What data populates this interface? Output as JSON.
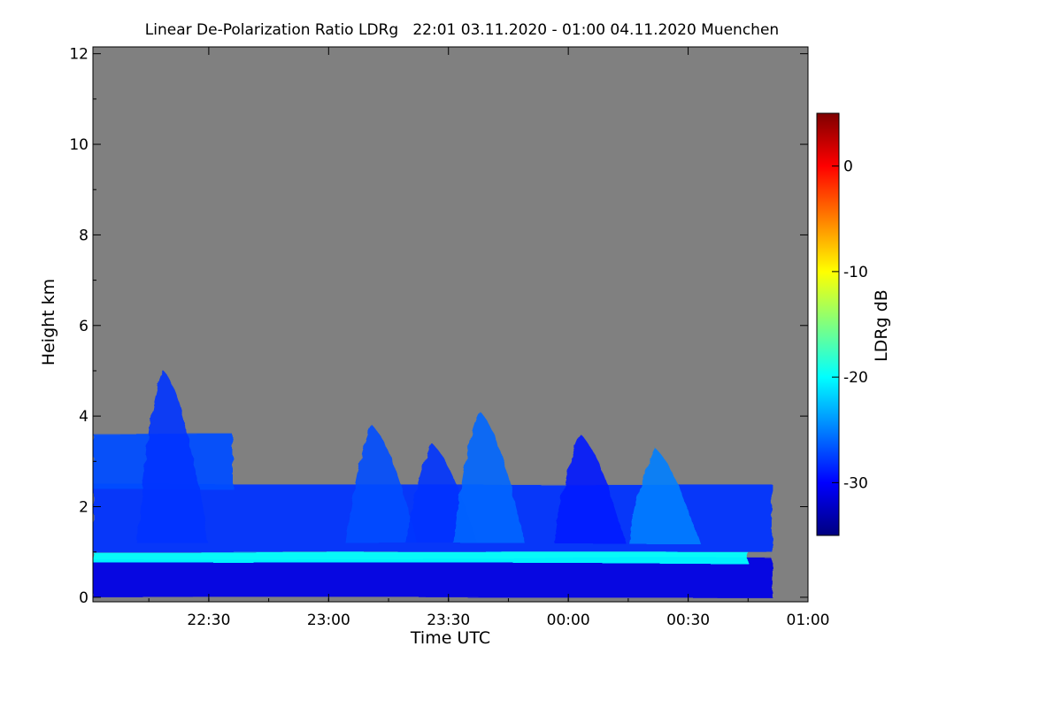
{
  "chart_data": {
    "type": "heatmap",
    "title": "Linear De-Polarization Ratio LDRg   22:01 03.11.2020 - 01:00 04.11.2020 Muenchen",
    "xlabel": "Time UTC",
    "ylabel": "Height km",
    "x_range_hours": [
      22.0167,
      25.0
    ],
    "x_ticks": [
      {
        "value": 22.5,
        "label": "22:30"
      },
      {
        "value": 23.0,
        "label": "23:00"
      },
      {
        "value": 23.5,
        "label": "23:30"
      },
      {
        "value": 24.0,
        "label": "00:00"
      },
      {
        "value": 24.5,
        "label": "00:30"
      },
      {
        "value": 25.0,
        "label": "01:00"
      }
    ],
    "y_range_km": [
      -0.1,
      12.15
    ],
    "y_ticks": [
      0,
      2,
      4,
      6,
      8,
      10,
      12
    ],
    "colorbar": {
      "label": "LDRg dB",
      "range_db": [
        -35,
        5
      ],
      "ticks": [
        0,
        -10,
        -20,
        -30
      ],
      "colormap": "jet"
    },
    "no_data_color": "#808080",
    "cloud_layers": [
      {
        "name": "surface-layer",
        "t_start": 22.0167,
        "t_end": 24.85,
        "base_km": 0.0,
        "top_km": 0.85,
        "ldr_db": -31
      },
      {
        "name": "bright-band",
        "t_start": 22.0167,
        "t_end": 24.75,
        "base_km": 0.75,
        "top_km": 1.0,
        "ldr_db": -20
      },
      {
        "name": "mixed-layer",
        "t_start": 22.0167,
        "t_end": 24.85,
        "base_km": 1.0,
        "top_km": 2.5,
        "ldr_db": -28
      },
      {
        "name": "upper-layer",
        "t_start": 22.0167,
        "t_end": 22.6,
        "base_km": 2.4,
        "top_km": 3.6,
        "ldr_db": -27
      }
    ],
    "plumes": [
      {
        "t": 22.33,
        "top_km": 5.0,
        "ldr_db": -28
      },
      {
        "t": 23.2,
        "top_km": 3.8,
        "ldr_db": -27
      },
      {
        "t": 23.45,
        "top_km": 3.4,
        "ldr_db": -28
      },
      {
        "t": 23.65,
        "top_km": 4.1,
        "ldr_db": -26
      },
      {
        "t": 24.07,
        "top_km": 3.6,
        "ldr_db": -29
      },
      {
        "t": 24.38,
        "top_km": 3.3,
        "ldr_db": -25
      }
    ]
  }
}
